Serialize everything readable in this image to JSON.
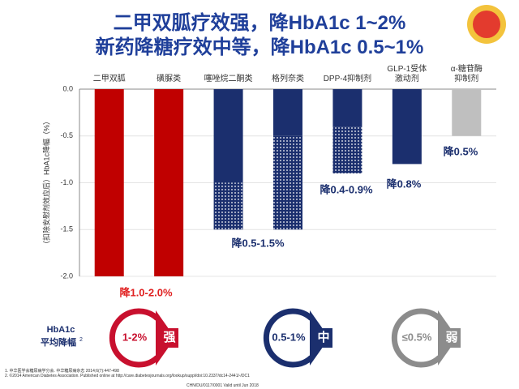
{
  "chart_data": {
    "type": "bar",
    "title": [
      "二甲双胍疗效强，降HbA1c 1~2%",
      "新药降糖疗效中等，降HbA1c 0.5~1%"
    ],
    "y_label": "（扣除安慰剂效应后）HbA1c降幅（%）",
    "categories": [
      "二甲双胍",
      "磺脲类",
      "噻唑烷二酮类",
      "格列奈类",
      "DPP-4抑制剂",
      "GLP-1受体\n激动剂",
      "α-糖苷酶\n抑制剂"
    ],
    "series": [
      {
        "values": [
          -2.0,
          -2.0,
          -1.0,
          -0.5,
          -0.4,
          -0.8,
          -0.5
        ],
        "pattern": "solid"
      },
      {
        "values": [
          null,
          null,
          -0.5,
          -1.0,
          -0.5,
          null,
          null
        ],
        "pattern": "dotted"
      }
    ],
    "colors": [
      "#c00000",
      "#c00000",
      "#1b2f6e",
      "#1b2f6e",
      "#1b2f6e",
      "#1b2f6e",
      "#bfbfbf"
    ],
    "ylim": [
      0,
      -2.0
    ],
    "yticks": [
      {
        "value": 0,
        "label": "0.0"
      },
      -0.5,
      {
        "value": -1.0,
        "label": "-1.0"
      },
      -1.5,
      {
        "value": -2.0,
        "label": "-2.0"
      }
    ],
    "grid": true,
    "annotations": [
      "降1.0-2.0%",
      "降0.5-1.5%",
      "降0.4-0.9%",
      "降0.8%",
      "降0.5%"
    ]
  },
  "summary": {
    "label": "HbA1c",
    "label2": "平均降幅",
    "sup": "2",
    "levels": [
      {
        "range": "1-2%",
        "strength": "强"
      },
      {
        "range": "0.5-1%",
        "strength": "中"
      },
      {
        "range": "≤0.5%",
        "strength": "弱"
      }
    ]
  },
  "footnotes": [
    "1. 中华医学会糖尿病学分会. 中华糖尿病杂志 2014;6(7):447-498",
    "2. ©2014 American Diabetes Association. Published online at http://care.diabetesjournals.org/lookup/suppl/doi:10.2337/dc14-2441/-/DC1"
  ],
  "footer_code": "CHN/DU/0117/0001 Valid until Jun 2018"
}
